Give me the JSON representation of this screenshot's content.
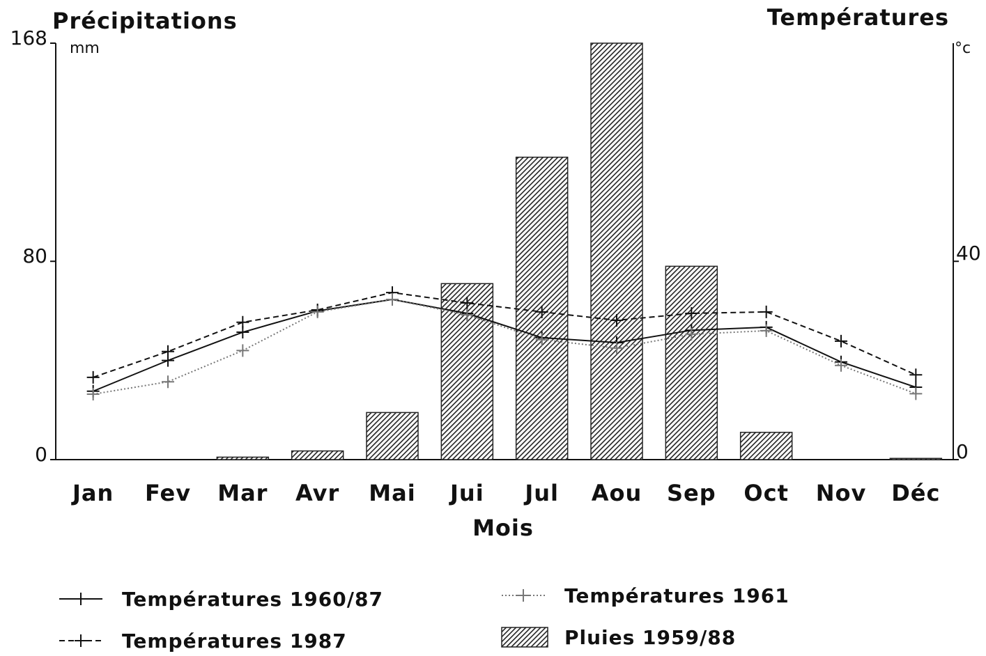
{
  "chart_data": {
    "type": "bar",
    "title": "Précipitations",
    "y_unit": "mm",
    "y2_title": "Températures",
    "y2_unit": "°c",
    "x_label": "Mois",
    "categories": [
      "Jan",
      "Fev",
      "Mar",
      "Avr",
      "Mai",
      "Jui",
      "Jul",
      "Aou",
      "Sep",
      "Oct",
      "Nov",
      "Déc"
    ],
    "ylim": [
      0,
      168
    ],
    "yticks": [
      0,
      80,
      168
    ],
    "y2lim": [
      0,
      84
    ],
    "y2ticks": [
      0,
      40
    ],
    "series": [
      {
        "name": "Températures 1960/87",
        "type": "line",
        "axis": "y2",
        "color": "#111111",
        "dash": "solid",
        "values": [
          13.8,
          20,
          25.7,
          30,
          32.3,
          29.5,
          24.6,
          23.6,
          26.1,
          26.7,
          19.7,
          14.6
        ]
      },
      {
        "name": "Températures 1987",
        "type": "line",
        "axis": "y2",
        "color": "#111111",
        "dash": "dashed",
        "values": [
          16.6,
          21.8,
          27.7,
          30.2,
          33.7,
          31.6,
          29.8,
          28.1,
          29.5,
          29.8,
          23.9,
          17.1
        ]
      },
      {
        "name": "Températures 1961",
        "type": "line",
        "axis": "y2",
        "color": "#777777",
        "dash": "dotted",
        "values": [
          13.2,
          15.7,
          22,
          29.8,
          32.3,
          29.2,
          24.2,
          22.5,
          25.3,
          26,
          19,
          13.3
        ]
      },
      {
        "name": "Pluies 1959/88",
        "type": "bar",
        "axis": "y",
        "color": "#222222",
        "values": [
          0,
          0,
          1,
          3.5,
          19,
          71,
          122,
          168,
          78,
          11,
          0,
          0.5
        ]
      }
    ]
  }
}
